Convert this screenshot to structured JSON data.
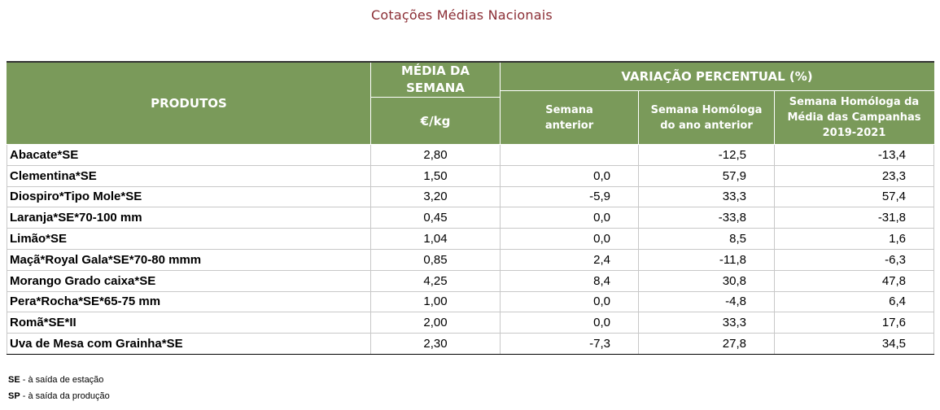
{
  "title": "Cotações Médias Nacionais",
  "header": {
    "produtos": "PRODUTOS",
    "media_line1": "MÉDIA DA",
    "media_line2": "SEMANA",
    "unit": "€/kg",
    "variacao": "VARIAÇÃO PERCENTUAL (%)",
    "sub1_line1": "Semana",
    "sub1_line2": "anterior",
    "sub2_line1": "Semana Homóloga",
    "sub2_line2": "do ano anterior",
    "sub3_line1": "Semana Homóloga da",
    "sub3_line2": "Média das Campanhas",
    "sub3_line3": "2019-2021"
  },
  "rows": [
    {
      "produto": "Abacate*SE",
      "media": "2,80",
      "anterior": "",
      "homologa": "-12,5",
      "campanhas": "-13,4"
    },
    {
      "produto": "Clementina*SE",
      "media": "1,50",
      "anterior": "0,0",
      "homologa": "57,9",
      "campanhas": "23,3"
    },
    {
      "produto": "Diospiro*Tipo Mole*SE",
      "media": "3,20",
      "anterior": "-5,9",
      "homologa": "33,3",
      "campanhas": "57,4"
    },
    {
      "produto": "Laranja*SE*70-100 mm",
      "media": "0,45",
      "anterior": "0,0",
      "homologa": "-33,8",
      "campanhas": "-31,8"
    },
    {
      "produto": "Limão*SE",
      "media": "1,04",
      "anterior": "0,0",
      "homologa": "8,5",
      "campanhas": "1,6"
    },
    {
      "produto": "Maçã*Royal Gala*SE*70-80 mmm",
      "media": "0,85",
      "anterior": "2,4",
      "homologa": "-11,8",
      "campanhas": "-6,3"
    },
    {
      "produto": "Morango Grado caixa*SE",
      "media": "4,25",
      "anterior": "8,4",
      "homologa": "30,8",
      "campanhas": "47,8"
    },
    {
      "produto": "Pera*Rocha*SE*65-75 mm",
      "media": "1,00",
      "anterior": "0,0",
      "homologa": "-4,8",
      "campanhas": "6,4"
    },
    {
      "produto": "Romã*SE*II",
      "media": "2,00",
      "anterior": "0,0",
      "homologa": "33,3",
      "campanhas": "17,6"
    },
    {
      "produto": "Uva de Mesa com Grainha*SE",
      "media": "2,30",
      "anterior": "-7,3",
      "homologa": "27,8",
      "campanhas": "34,5"
    }
  ],
  "notes": [
    {
      "abbr": "SE",
      "text": " - à saída de estação"
    },
    {
      "abbr": "SP",
      "text": " - à saída da produção"
    }
  ]
}
